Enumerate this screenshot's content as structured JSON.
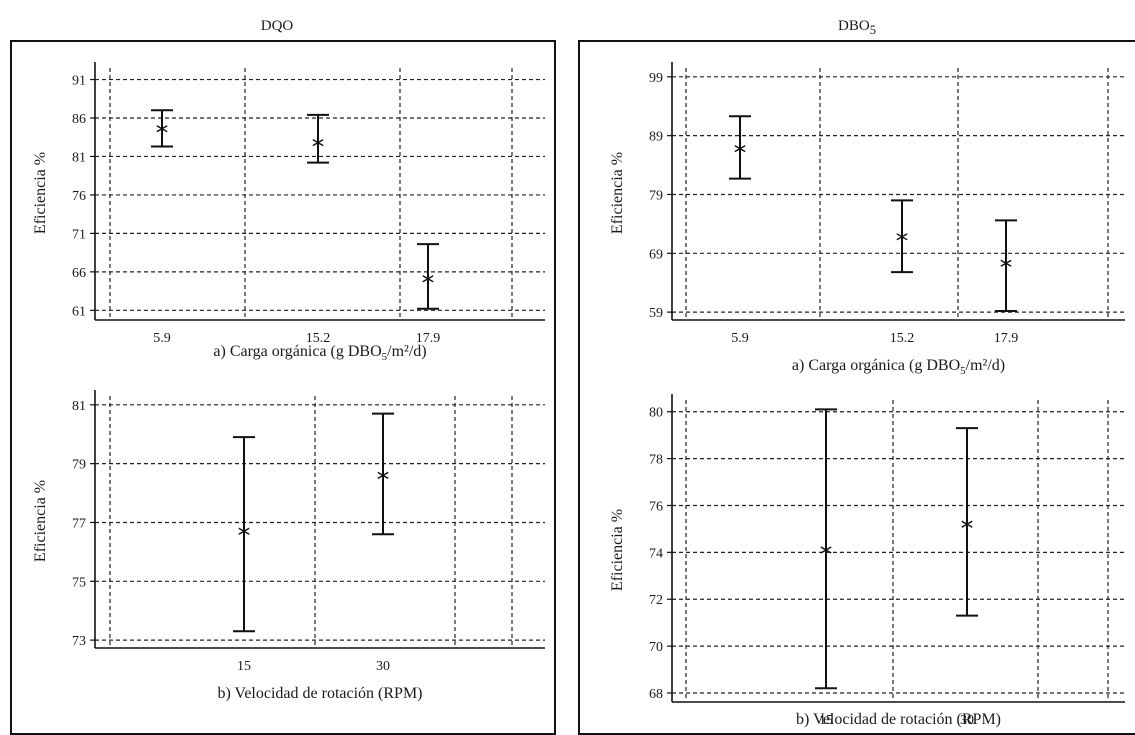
{
  "columns": [
    {
      "title": "DQO",
      "sub": ""
    },
    {
      "title": "DBO",
      "sub": "5"
    }
  ],
  "chart_data": [
    {
      "id": "dqo-carga",
      "type": "errorbar",
      "categories": [
        "5.9",
        "15.2",
        "17.9"
      ],
      "series": [
        {
          "mean": [
            84.6,
            82.8,
            65.1
          ],
          "lower": [
            82.3,
            80.2,
            61.2
          ],
          "upper": [
            87.0,
            86.4,
            69.6
          ]
        }
      ],
      "ylabel": "Eficiencia %",
      "xlabel": "a) Carga orgánica (g DBO5/m²/d)",
      "yticks": [
        61,
        66,
        71,
        76,
        81,
        86,
        91
      ],
      "ylim": [
        60,
        92.5
      ],
      "grid": true
    },
    {
      "id": "dbo-carga",
      "type": "errorbar",
      "categories": [
        "5.9",
        "15.2",
        "17.9"
      ],
      "series": [
        {
          "mean": [
            86.8,
            71.8,
            67.3
          ],
          "lower": [
            81.7,
            65.8,
            59.2
          ],
          "upper": [
            92.3,
            78.0,
            74.6
          ]
        }
      ],
      "ylabel": "Eficiencia %",
      "xlabel": "a) Carga orgánica (g DBO5/m²/d)",
      "yticks": [
        59,
        69,
        79,
        89,
        99
      ],
      "ylim": [
        58,
        100.5
      ],
      "grid": true
    },
    {
      "id": "dqo-velocidad",
      "type": "errorbar",
      "categories": [
        "15",
        "30"
      ],
      "series": [
        {
          "mean": [
            76.7,
            78.6
          ],
          "lower": [
            73.3,
            76.6
          ],
          "upper": [
            79.9,
            80.7
          ]
        }
      ],
      "ylabel": "Eficiencia %",
      "xlabel": "b) Velocidad de rotación (RPM)",
      "yticks": [
        73,
        75,
        77,
        79,
        81
      ],
      "ylim": [
        72.8,
        81.3
      ],
      "grid": true
    },
    {
      "id": "dbo-velocidad",
      "type": "errorbar",
      "categories": [
        "15",
        "30"
      ],
      "series": [
        {
          "mean": [
            74.1,
            75.2
          ],
          "lower": [
            68.2,
            71.3
          ],
          "upper": [
            80.1,
            79.3
          ]
        }
      ],
      "ylabel": "Eficiencia %",
      "xlabel": "b) Velocidad de rotación (RPM)",
      "yticks": [
        68,
        70,
        72,
        74,
        76,
        78,
        80
      ],
      "ylim": [
        67.7,
        80.5
      ],
      "grid": true
    }
  ]
}
